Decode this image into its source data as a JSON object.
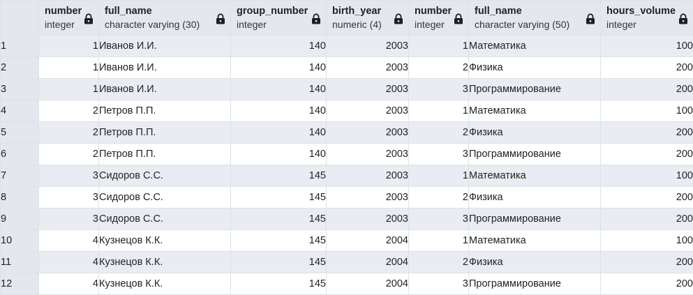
{
  "columns": [
    {
      "name": "number",
      "type": "integer",
      "align": "num"
    },
    {
      "name": "full_name",
      "type": "character varying (30)",
      "align": "txt"
    },
    {
      "name": "group_number",
      "type": "integer",
      "align": "num"
    },
    {
      "name": "birth_year",
      "type": "numeric (4)",
      "align": "num"
    },
    {
      "name": "number",
      "type": "integer",
      "align": "num"
    },
    {
      "name": "full_name",
      "type": "character varying (50)",
      "align": "txt"
    },
    {
      "name": "hours_volume",
      "type": "integer",
      "align": "num"
    }
  ],
  "rows": [
    {
      "n": "1",
      "cells": [
        "1",
        "Иванов И.И.",
        "140",
        "2003",
        "1",
        "Математика",
        "100"
      ]
    },
    {
      "n": "2",
      "cells": [
        "1",
        "Иванов И.И.",
        "140",
        "2003",
        "2",
        "Физика",
        "200"
      ]
    },
    {
      "n": "3",
      "cells": [
        "1",
        "Иванов И.И.",
        "140",
        "2003",
        "3",
        "Программирование",
        "200"
      ]
    },
    {
      "n": "4",
      "cells": [
        "2",
        "Петров П.П.",
        "140",
        "2003",
        "1",
        "Математика",
        "100"
      ]
    },
    {
      "n": "5",
      "cells": [
        "2",
        "Петров П.П.",
        "140",
        "2003",
        "2",
        "Физика",
        "200"
      ]
    },
    {
      "n": "6",
      "cells": [
        "2",
        "Петров П.П.",
        "140",
        "2003",
        "3",
        "Программирование",
        "200"
      ]
    },
    {
      "n": "7",
      "cells": [
        "3",
        "Сидоров С.С.",
        "145",
        "2003",
        "1",
        "Математика",
        "100"
      ]
    },
    {
      "n": "8",
      "cells": [
        "3",
        "Сидоров С.С.",
        "145",
        "2003",
        "2",
        "Физика",
        "200"
      ]
    },
    {
      "n": "9",
      "cells": [
        "3",
        "Сидоров С.С.",
        "145",
        "2003",
        "3",
        "Программирование",
        "200"
      ]
    },
    {
      "n": "10",
      "cells": [
        "4",
        "Кузнецов К.К.",
        "145",
        "2004",
        "1",
        "Математика",
        "100"
      ]
    },
    {
      "n": "11",
      "cells": [
        "4",
        "Кузнецов К.К.",
        "145",
        "2004",
        "2",
        "Физика",
        "200"
      ]
    },
    {
      "n": "12",
      "cells": [
        "4",
        "Кузнецов К.К.",
        "145",
        "2004",
        "3",
        "Программирование",
        "200"
      ]
    }
  ],
  "icons": {
    "column_lock": "lock-icon"
  },
  "colors": {
    "header_bg": "#e4e8ee",
    "stripe_bg": "#e9edf3",
    "row_bg": "#ffffff",
    "grid_line": "#dee2e6"
  }
}
